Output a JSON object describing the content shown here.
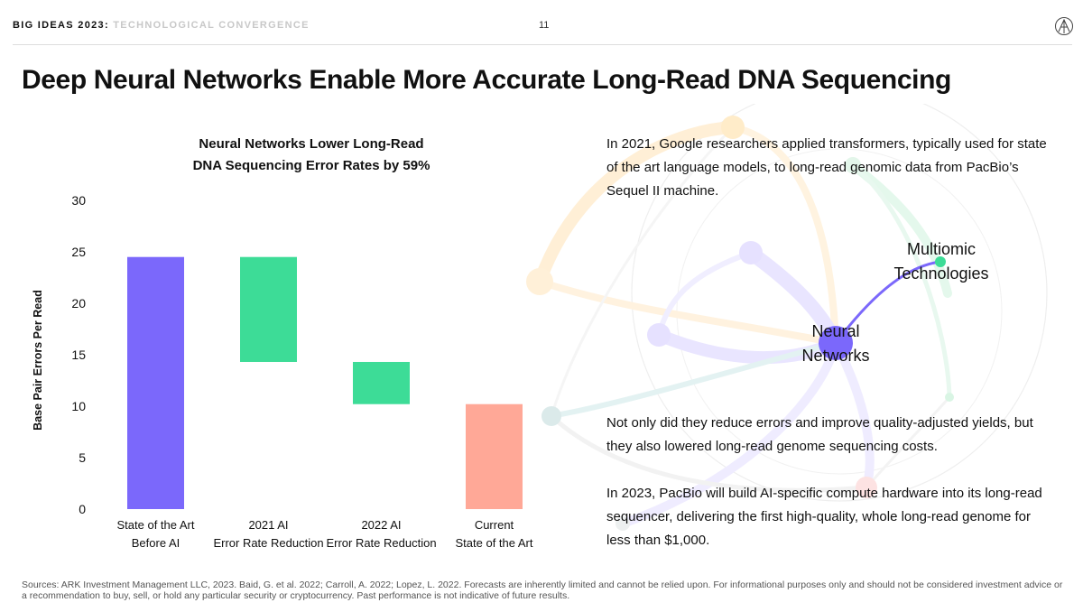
{
  "header": {
    "brand": "BIG IDEAS 2023:",
    "section": "TECHNOLOGICAL CONVERGENCE",
    "page_number": "11"
  },
  "title": "Deep Neural Networks Enable More Accurate Long-Read DNA Sequencing",
  "chart_data": {
    "type": "bar",
    "subtype": "waterfall",
    "title_lines": [
      "Neural Networks Lower Long-Read",
      "DNA Sequencing Error Rates by 59%"
    ],
    "ylabel": "Base Pair Errors Per Read",
    "xlabel": "",
    "ylim": [
      0,
      30
    ],
    "yticks": [
      0,
      5,
      10,
      15,
      20,
      25,
      30
    ],
    "grid": false,
    "categories": [
      [
        "State of the Art",
        "Before AI"
      ],
      [
        "2021 AI",
        "Error Rate Reduction"
      ],
      [
        "2022 AI",
        "Error Rate Reduction"
      ],
      [
        "Current",
        "State of the Art"
      ]
    ],
    "bars": [
      {
        "start": 0,
        "end": 24.5,
        "color": "#7b68fb"
      },
      {
        "start": 14.3,
        "end": 24.5,
        "color": "#3ddc97"
      },
      {
        "start": 10.2,
        "end": 14.3,
        "color": "#3ddc97"
      },
      {
        "start": 0,
        "end": 10.2,
        "color": "#ffa897"
      }
    ]
  },
  "paragraphs": [
    "In 2021, Google researchers applied transformers, typically used for state of the art language models, to long-read genomic data from PacBio’s Sequel II machine.",
    "Not only did they reduce errors and improve quality-adjusted yields, but they also lowered long-read genome sequencing costs.",
    "In 2023, PacBio will build AI-specific compute hardware into its long-read sequencer, delivering the first high-quality, whole long-read genome for less than $1,000."
  ],
  "network": {
    "label_multiomic_1": "Multiomic",
    "label_multiomic_2": "Technologies",
    "label_nn_1": "Neural",
    "label_nn_2": "Networks",
    "colors": {
      "purple": "#7b68fb",
      "green": "#3ddc97",
      "orange": "#ffcf8a",
      "teal": "#8bc9c9",
      "pink": "#f7a7a7"
    }
  },
  "footer": {
    "sources": "Sources: ARK Investment Management LLC, 2023. Baid, G. et al. 2022; Carroll, A. 2022; Lopez, L. 2022. Forecasts are inherently limited and cannot be relied upon. For informational purposes only and should not be considered investment advice or a recommendation to buy, sell, or hold any particular security or cryptocurrency. Past performance is not indicative of future results."
  }
}
